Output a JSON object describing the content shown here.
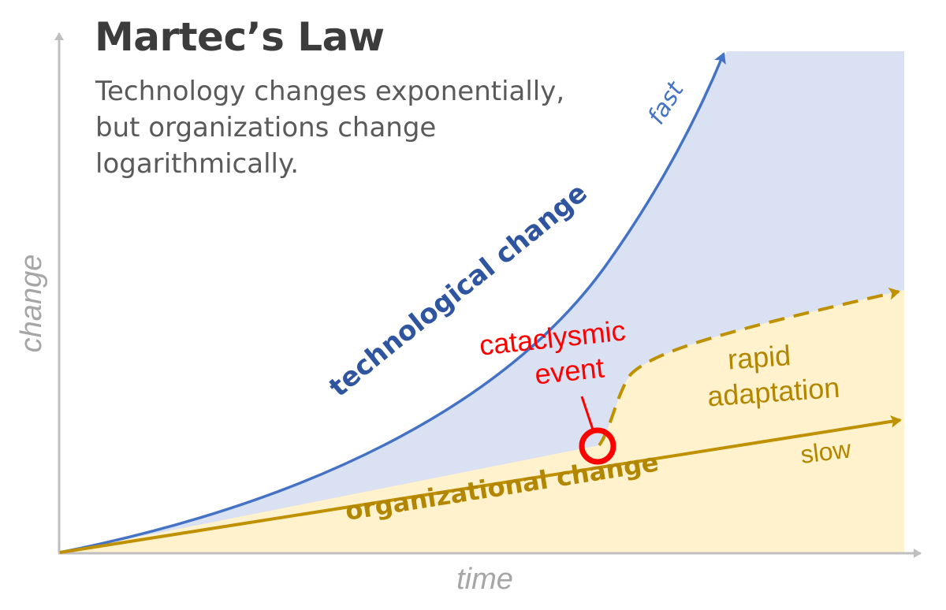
{
  "title": "Martec’s Law",
  "subtitle_lines": [
    "Technology changes exponentially,",
    "but organizations change",
    "logarithmically."
  ],
  "axes": {
    "x_label": "time",
    "y_label": "change"
  },
  "curves": {
    "technology_label": "technological change",
    "technology_end_label": "fast",
    "organization_label": "organizational change",
    "organization_end_label": "slow",
    "adaptation_label_lines": [
      "rapid",
      "adaptation"
    ]
  },
  "event": {
    "label_lines": [
      "cataclysmic",
      "event"
    ]
  },
  "colors": {
    "technology": "#4472c4",
    "technology_text": "#2f55a0",
    "technology_fill": "#d9e1f2",
    "organization": "#bf9000",
    "organization_text": "#b38600",
    "organization_fill": "#fff2cc",
    "event": "#ff0000",
    "axis": "#bfbfbf",
    "axis_text": "#a6a6a6"
  }
}
